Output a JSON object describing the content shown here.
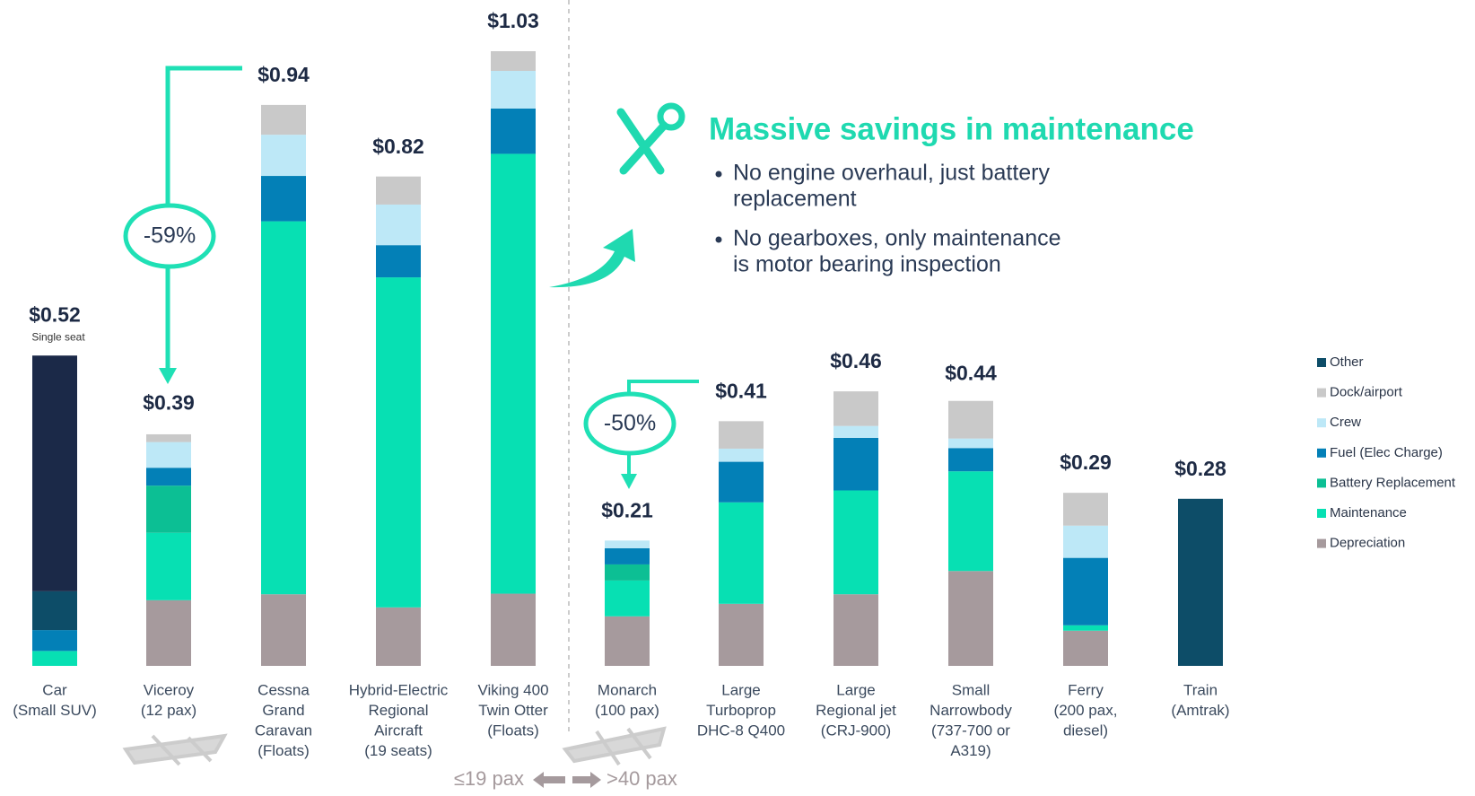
{
  "chart_data": {
    "type": "stacked-bar",
    "categories": [
      [
        "Car",
        "(Small SUV)"
      ],
      [
        "Viceroy",
        "(12 pax)"
      ],
      [
        "Cessna",
        "Grand",
        "Caravan",
        "(Floats)"
      ],
      [
        "Hybrid-Electric",
        "Regional",
        "Aircraft",
        "(19 seats)"
      ],
      [
        "Viking 400",
        "Twin Otter",
        "(Floats)"
      ],
      [
        "Monarch",
        "(100 pax)"
      ],
      [
        "Large",
        "Turboprop",
        "DHC-8 Q400"
      ],
      [
        "Large",
        "Regional jet",
        "(CRJ-900)"
      ],
      [
        "Small",
        "Narrowbody",
        "(737-700 or",
        "A319)"
      ],
      [
        "Ferry",
        "(200 pax,",
        "diesel)"
      ],
      [
        "Train",
        "(Amtrak)"
      ]
    ],
    "series": [
      {
        "name": "Depreciation",
        "color": "#a69a9d",
        "values": [
          null,
          0.11,
          0.12,
          0.098,
          0.121,
          0.083,
          0.104,
          0.12,
          0.159,
          0.059,
          null
        ]
      },
      {
        "name": "Maintenance",
        "color": "#07e0b3",
        "values": [
          0.025,
          0.113,
          0.625,
          0.553,
          0.737,
          0.06,
          0.17,
          0.174,
          0.167,
          0.009,
          null
        ]
      },
      {
        "name": "Battery Replacement",
        "color": "#0cbf94",
        "values": [
          null,
          0.079,
          null,
          null,
          null,
          0.027,
          null,
          null,
          null,
          null,
          null
        ]
      },
      {
        "name": "Fuel (Elec Charge)",
        "color": "#0380b7",
        "values": [
          0.035,
          0.03,
          0.076,
          0.054,
          0.076,
          0.027,
          0.068,
          0.088,
          0.039,
          0.113,
          null
        ]
      },
      {
        "name": "Crew",
        "color": "#bde8f7",
        "values": [
          null,
          0.043,
          0.069,
          0.068,
          0.063,
          0.013,
          0.022,
          0.02,
          0.016,
          0.054,
          null
        ]
      },
      {
        "name": "Dock/airport",
        "color": "#c9c9c9",
        "values": [
          null,
          0.013,
          0.05,
          0.047,
          0.033,
          null,
          0.046,
          0.058,
          0.063,
          0.055,
          null
        ]
      },
      {
        "name": "Other",
        "color": "#0d4d68",
        "values": [
          0.065,
          null,
          null,
          null,
          null,
          null,
          null,
          null,
          null,
          null,
          0.28
        ]
      },
      {
        "name": null,
        "color": "#1b2948",
        "values": [
          0.395,
          null,
          null,
          null,
          null,
          null,
          null,
          null,
          null,
          null,
          null
        ]
      }
    ],
    "totals": [
      0.52,
      0.39,
      0.94,
      0.82,
      1.03,
      0.21,
      0.41,
      0.46,
      0.44,
      0.29,
      0.28
    ],
    "total_labels": [
      "$0.52",
      "$0.39",
      "$0.94",
      "$0.82",
      "$1.03",
      "$0.21",
      "$0.41",
      "$0.46",
      "$0.44",
      "$0.29",
      "$0.28"
    ],
    "annotations": {
      "single_seat": "Single seat",
      "viceroy_change": "-59%",
      "monarch_change": "-50%",
      "headline": "Massive savings in maintenance",
      "bullets": [
        [
          "No engine overhaul, just battery",
          "replacement"
        ],
        [
          "No gearboxes, only maintenance",
          "is motor bearing inspection"
        ]
      ],
      "small_group": "≤19 pax",
      "large_group": ">40 pax"
    }
  }
}
